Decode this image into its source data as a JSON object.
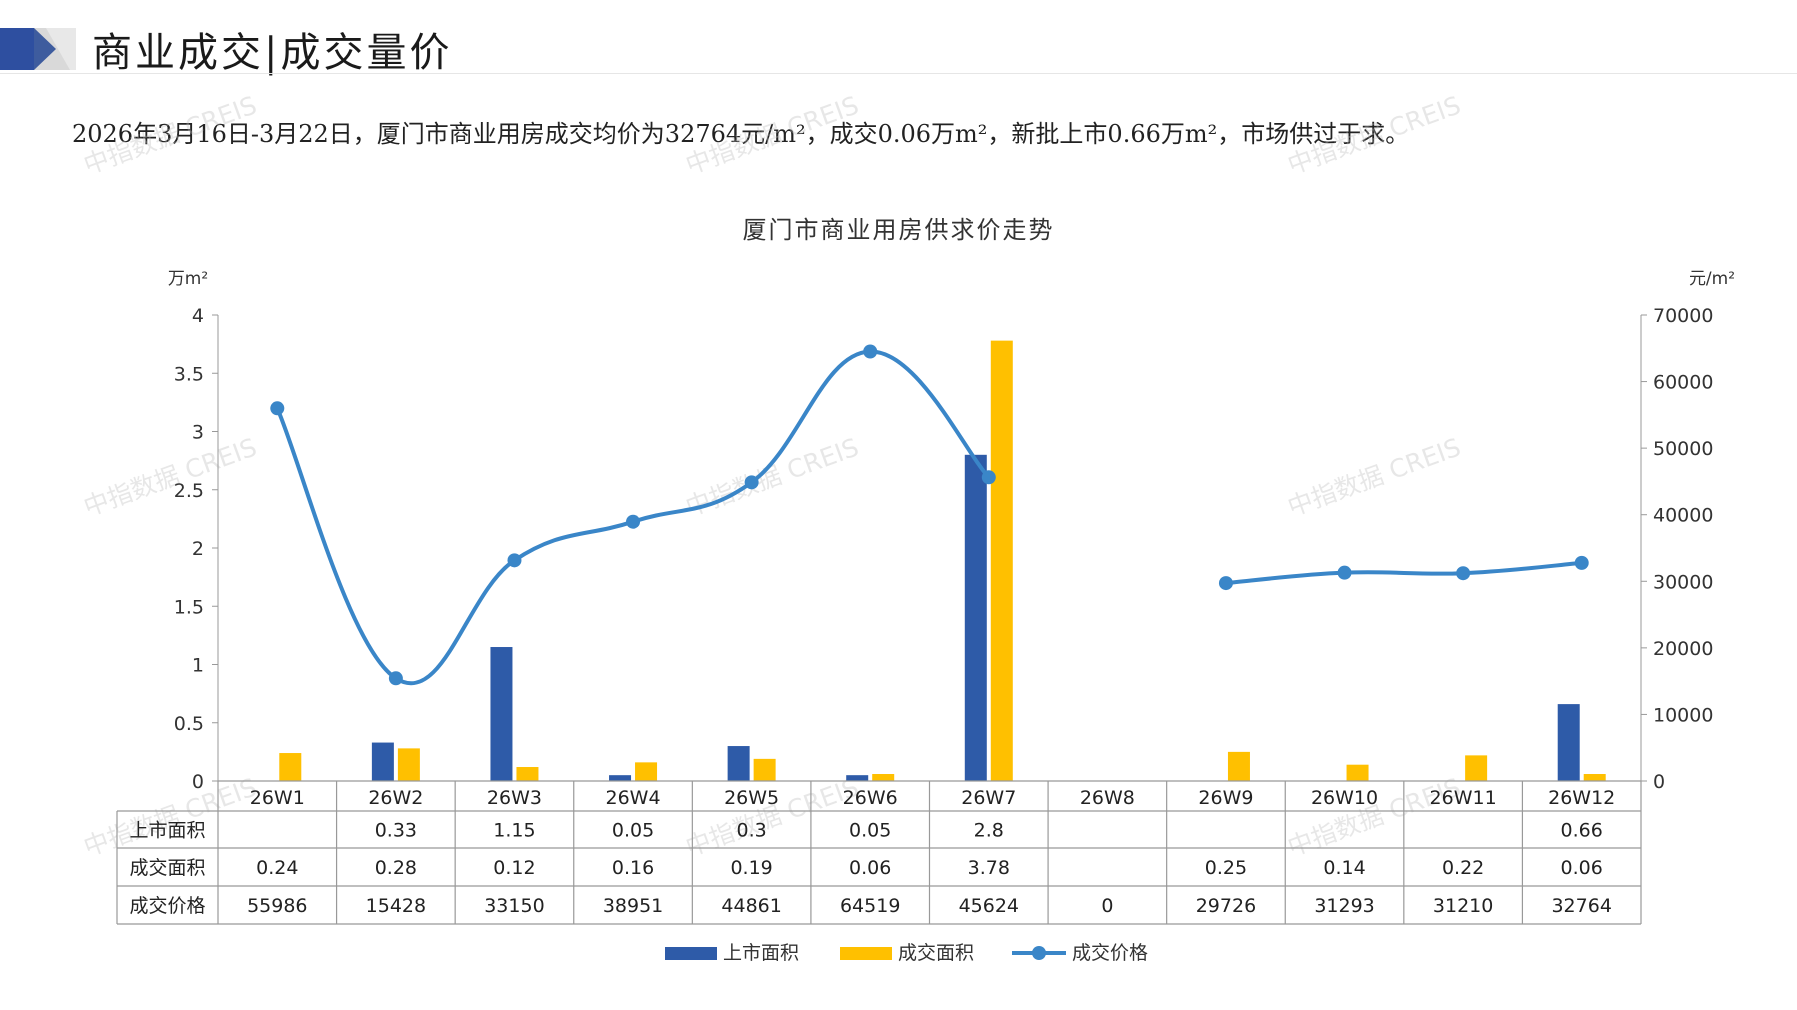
{
  "header": {
    "title": "商业成交|成交量价",
    "summary": "2026年3月16日-3月22日，厦门市商业用房成交均价为32764元/m²，成交0.06万m²，新批上市0.66万m²，市场供过于求。"
  },
  "watermark": "中指数据 CREIS",
  "colors": {
    "supply": "#2E5BA8",
    "deal": "#FFC000",
    "price": "#3A86C8",
    "grid": "#888888"
  },
  "chart_data": {
    "type": "bar",
    "title": "厦门市商业用房供求价走势",
    "y_left_unit": "万m²",
    "y_right_unit": "元/m²",
    "y_left_range": [
      0,
      4
    ],
    "y_left_ticks": [
      "4",
      "3.5",
      "3",
      "2.5",
      "2",
      "1.5",
      "1",
      "0.5",
      "0"
    ],
    "y_right_range": [
      0,
      70000
    ],
    "y_right_ticks": [
      "70000",
      "60000",
      "50000",
      "40000",
      "30000",
      "20000",
      "10000",
      "0"
    ],
    "categories": [
      "26W1",
      "26W2",
      "26W3",
      "26W4",
      "26W5",
      "26W6",
      "26W7",
      "26W8",
      "26W9",
      "26W10",
      "26W11",
      "26W12"
    ],
    "series": [
      {
        "name": "上市面积",
        "type": "bar",
        "axis": "left",
        "values": [
          null,
          0.33,
          1.15,
          0.05,
          0.3,
          0.05,
          2.8,
          null,
          null,
          null,
          null,
          0.66
        ],
        "labels": [
          "",
          "0.33",
          "1.15",
          "0.05",
          "0.3",
          "0.05",
          "2.8",
          "",
          "",
          "",
          "",
          "0.66"
        ]
      },
      {
        "name": "成交面积",
        "type": "bar",
        "axis": "left",
        "values": [
          0.24,
          0.28,
          0.12,
          0.16,
          0.19,
          0.06,
          3.78,
          null,
          0.25,
          0.14,
          0.22,
          0.06
        ],
        "labels": [
          "0.24",
          "0.28",
          "0.12",
          "0.16",
          "0.19",
          "0.06",
          "3.78",
          "",
          "0.25",
          "0.14",
          "0.22",
          "0.06"
        ]
      },
      {
        "name": "成交价格",
        "type": "line",
        "axis": "right",
        "values": [
          55986,
          15428,
          33150,
          38951,
          44861,
          64519,
          45624,
          0,
          29726,
          31293,
          31210,
          32764
        ],
        "labels": [
          "55986",
          "15428",
          "33150",
          "38951",
          "44861",
          "64519",
          "45624",
          "0",
          "29726",
          "31293",
          "31210",
          "32764"
        ]
      }
    ],
    "legend_position": "bottom",
    "data_table": true
  }
}
